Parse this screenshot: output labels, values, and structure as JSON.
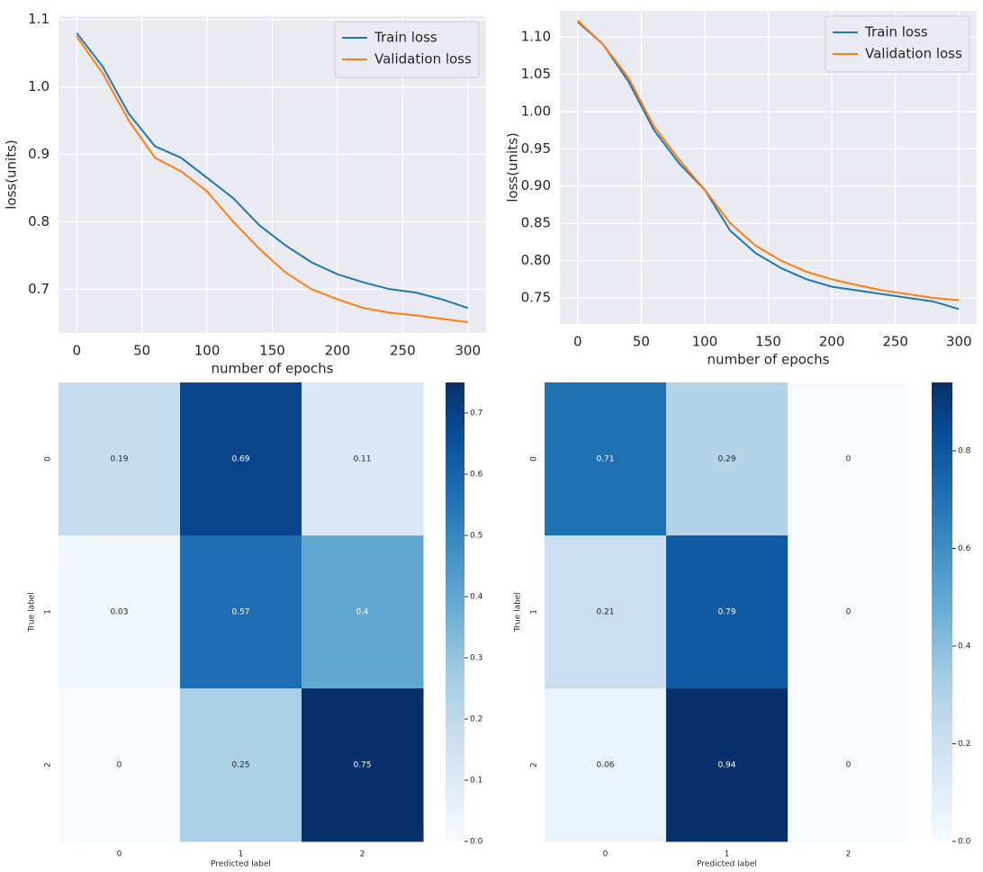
{
  "chart_data": [
    {
      "type": "line",
      "xlabel": "number of epochs",
      "ylabel": "loss(units)",
      "x": [
        0,
        20,
        40,
        60,
        80,
        100,
        120,
        140,
        160,
        180,
        200,
        220,
        240,
        260,
        280,
        300
      ],
      "series": [
        {
          "name": "Train loss",
          "color": "#1f77b4",
          "values": [
            1.08,
            1.03,
            0.96,
            0.912,
            0.895,
            0.865,
            0.835,
            0.795,
            0.765,
            0.74,
            0.722,
            0.71,
            0.7,
            0.695,
            0.685,
            0.672
          ]
        },
        {
          "name": "Validation loss",
          "color": "#ff7f0e",
          "values": [
            1.075,
            1.02,
            0.95,
            0.895,
            0.875,
            0.845,
            0.8,
            0.76,
            0.725,
            0.7,
            0.685,
            0.672,
            0.665,
            0.661,
            0.656,
            0.651
          ]
        }
      ],
      "xlim": [
        -14,
        314
      ],
      "xticks": [
        0,
        50,
        100,
        150,
        200,
        250,
        300
      ],
      "ylim": [
        0.635,
        1.105
      ],
      "yticks": [
        0.7,
        0.8,
        0.9,
        {
          "value": 1,
          "label": "1.0"
        },
        1.1
      ],
      "grid": true,
      "legend": "upper right"
    },
    {
      "type": "line",
      "xlabel": "number of epochs",
      "ylabel": "loss(units)",
      "x": [
        0,
        20,
        40,
        60,
        80,
        100,
        120,
        140,
        160,
        180,
        200,
        220,
        240,
        260,
        280,
        300
      ],
      "series": [
        {
          "name": "Train loss",
          "color": "#1f77b4",
          "values": [
            1.12,
            1.09,
            1.04,
            0.975,
            0.93,
            0.895,
            0.84,
            0.81,
            0.79,
            0.775,
            0.765,
            0.76,
            0.755,
            0.75,
            0.745,
            0.735
          ]
        },
        {
          "name": "Validation loss",
          "color": "#ff7f0e",
          "values": [
            1.122,
            1.09,
            1.045,
            0.98,
            0.935,
            0.895,
            0.85,
            0.82,
            0.8,
            0.785,
            0.775,
            0.767,
            0.76,
            0.755,
            0.75,
            0.747
          ]
        }
      ],
      "xlim": [
        -14,
        314
      ],
      "xticks": [
        0,
        50,
        100,
        150,
        200,
        250,
        300
      ],
      "ylim": [
        0.715,
        1.135
      ],
      "yticks": [
        0.75,
        {
          "value": 0.8,
          "label": "0.80"
        },
        0.85,
        {
          "value": 0.9,
          "label": "0.90"
        },
        0.95,
        {
          "value": 1,
          "label": "1.00"
        },
        1.05,
        {
          "value": 1.1,
          "label": "1.10"
        }
      ],
      "grid": true,
      "legend": "upper right"
    },
    {
      "type": "heatmap",
      "xlabel": "Predicted label",
      "ylabel": "True label",
      "xcategories": [
        "0",
        "1",
        "2"
      ],
      "ycategories": [
        "0",
        "1",
        "2"
      ],
      "values": [
        [
          0.19,
          0.69,
          0.11
        ],
        [
          0.03,
          0.57,
          0.4
        ],
        [
          0,
          0.25,
          0.75
        ]
      ],
      "clim": [
        0,
        0.75
      ],
      "cticks": [
        {
          "value": 0,
          "label": "0.0"
        },
        0.1,
        0.2,
        0.3,
        0.4,
        0.5,
        0.6,
        0.7
      ]
    },
    {
      "type": "heatmap",
      "xlabel": "Predicted label",
      "ylabel": "True label",
      "xcategories": [
        "0",
        "1",
        "2"
      ],
      "ycategories": [
        "0",
        "1",
        "2"
      ],
      "values": [
        [
          0.71,
          0.29,
          0
        ],
        [
          0.21,
          0.79,
          0
        ],
        [
          0.06,
          0.94,
          0
        ]
      ],
      "clim": [
        0,
        0.94
      ],
      "cticks": [
        {
          "value": 0,
          "label": "0.0"
        },
        0.2,
        0.4,
        0.6,
        0.8
      ]
    }
  ]
}
